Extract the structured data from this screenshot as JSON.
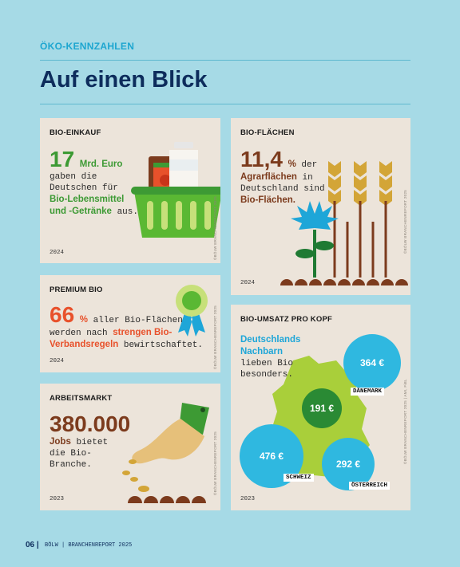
{
  "header": {
    "kicker": "ÖKO-KENNZAHLEN",
    "title": "Auf einen Blick"
  },
  "cards": [
    {
      "heading": "BIO-EINKAUF",
      "figure": "17",
      "unit": "Mrd. Euro",
      "text": [
        "gaben die Deutschen für ",
        "Bio-Lebensmittel und -Getränke",
        " aus."
      ],
      "year": "2024",
      "credit": "©BÖLW BRANCHENREPORT 2025"
    },
    {
      "heading": "BIO-FLÄCHEN",
      "figure": "11,4",
      "unit": "%",
      "text": [
        " der ",
        "Agrarflächen",
        " in Deutschland sind ",
        "Bio-Flächen."
      ],
      "year": "2024",
      "credit": "©BÖLW BRANCHENREPORT 2025"
    },
    {
      "heading": "PREMIUM BIO",
      "figure": "66",
      "unit": "%",
      "text": [
        " aller Bio-Flächen werden nach ",
        "strengen Bio-Verbandsregeln",
        " bewirtschaftet."
      ],
      "year": "2024",
      "credit": "©BÖLW BRANCHENREPORT 2025"
    },
    {
      "heading": "BIO-UMSATZ PRO KOPF",
      "text": [
        "Deutschlands Nachbarn",
        " lieben Bio besonders."
      ],
      "countries": [
        {
          "value": "364 €",
          "name": "DÄNEMARK"
        },
        {
          "value": "191 €"
        },
        {
          "value": "476 €",
          "name": "SCHWEIZ"
        },
        {
          "value": "292 €",
          "name": "ÖSTERREICH"
        }
      ],
      "year": "2023",
      "credit": "©BÖLW BRANCHENREPORT 2025 | AMI, FiBL"
    },
    {
      "heading": "ARBEITSMARKT",
      "figure": "380.000",
      "text": [
        "Jobs",
        " bietet die Bio-Branche."
      ],
      "year": "2023",
      "credit": "©BÖLW BRANCHENREPORT 2025"
    }
  ],
  "footer": {
    "page": "06 |",
    "text": "BÖLW | BRANCHENREPORT 2025"
  }
}
